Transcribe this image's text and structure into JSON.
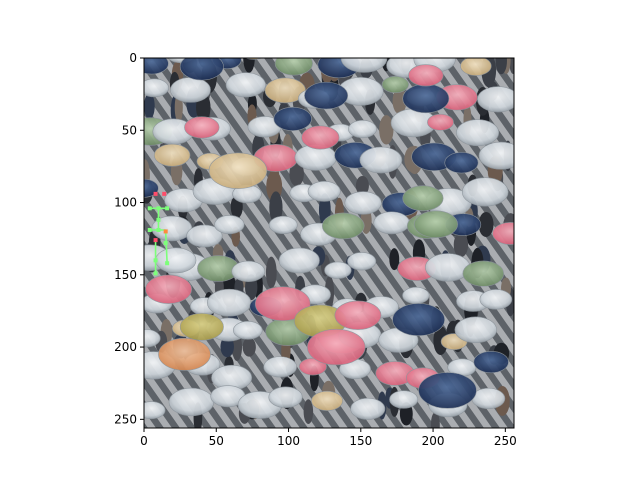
{
  "chart_data": {
    "type": "image",
    "title": "",
    "xlabel": "",
    "ylabel": "",
    "xlim": [
      0,
      256
    ],
    "ylim": [
      256,
      0
    ],
    "x_ticks": [
      0,
      50,
      100,
      150,
      200,
      250
    ],
    "y_ticks": [
      0,
      50,
      100,
      150,
      200,
      250
    ],
    "x_tick_labels": [
      "0",
      "50",
      "100",
      "150",
      "200",
      "250"
    ],
    "y_tick_labels": [
      "0",
      "50",
      "100",
      "150",
      "200",
      "250"
    ],
    "image_content": "aerial view of a crowded street crossing in the rain with many umbrellas",
    "overlay_keypoints": [
      {
        "x": 8,
        "y": 94,
        "color": "#ff4d6a"
      },
      {
        "x": 14,
        "y": 94,
        "color": "#ff4d6a"
      },
      {
        "x": 4,
        "y": 104,
        "color": "#7dff7a"
      },
      {
        "x": 16,
        "y": 104,
        "color": "#7dff7a"
      },
      {
        "x": 10,
        "y": 104,
        "color": "#7dff7a"
      },
      {
        "x": 10,
        "y": 112,
        "color": "#7dff7a"
      },
      {
        "x": 4,
        "y": 119,
        "color": "#7dff7a"
      },
      {
        "x": 10,
        "y": 119,
        "color": "#7dff7a"
      },
      {
        "x": 15,
        "y": 120,
        "color": "#ff8a3d"
      },
      {
        "x": 8,
        "y": 126,
        "color": "#ff4d6a"
      },
      {
        "x": 15,
        "y": 128,
        "color": "#7dff7a"
      },
      {
        "x": 8,
        "y": 140,
        "color": "#7dff7a"
      },
      {
        "x": 16,
        "y": 142,
        "color": "#7dff7a"
      },
      {
        "x": 8,
        "y": 149,
        "color": "#7dff7a"
      }
    ],
    "overlay_segments": [
      [
        4,
        104,
        16,
        104
      ],
      [
        10,
        104,
        10,
        112
      ],
      [
        4,
        119,
        15,
        119
      ],
      [
        10,
        112,
        10,
        119
      ],
      [
        8,
        126,
        8,
        149
      ],
      [
        15,
        120,
        16,
        142
      ]
    ]
  }
}
